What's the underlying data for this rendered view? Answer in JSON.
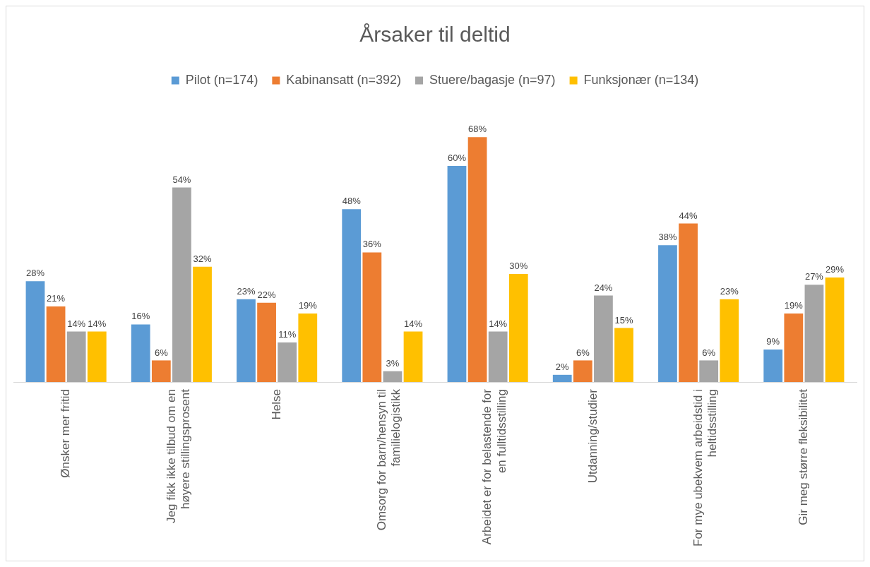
{
  "chart_data": {
    "type": "bar",
    "title": "Årsaker til deltid",
    "categories": [
      "Ønsker mer fritid",
      "Jeg fikk ikke tilbud om en høyere stillingsprosent",
      "Helse",
      "Omsorg for barn/hensyn til familielogistikk",
      "Arbeidet er for belastende for en fulltidsstilling",
      "Utdanning/studier",
      "For mye ubekvem arbeidstid i heltidsstilling",
      "Gir meg større fleksibilitet"
    ],
    "series": [
      {
        "name": "Pilot (n=174)",
        "color": "#5b9bd5",
        "values": [
          28,
          16,
          23,
          48,
          60,
          2,
          38,
          9
        ],
        "value_labels": [
          "28%",
          "16%",
          "23%",
          "48%",
          "60%",
          "2%",
          "38%",
          "9%"
        ]
      },
      {
        "name": "Kabinansatt (n=392)",
        "color": "#ed7d31",
        "values": [
          21,
          6,
          22,
          36,
          68,
          6,
          44,
          19
        ],
        "value_labels": [
          "21%",
          "6%",
          "22%",
          "36%",
          "68%",
          "6%",
          "44%",
          "19%"
        ]
      },
      {
        "name": "Stuere/bagasje (n=97)",
        "color": "#a5a5a5",
        "values": [
          14,
          54,
          11,
          3,
          14,
          24,
          6,
          27
        ],
        "value_labels": [
          "14%",
          "54%",
          "11%",
          "3%",
          "14%",
          "24%",
          "6%",
          "27%"
        ]
      },
      {
        "name": "Funksjonær (n=134)",
        "color": "#ffc000",
        "values": [
          14,
          32,
          19,
          14,
          30,
          15,
          23,
          29
        ],
        "value_labels": [
          "14%",
          "32%",
          "19%",
          "14%",
          "30%",
          "15%",
          "23%",
          "29%"
        ]
      }
    ],
    "legend": "top",
    "grid": false
  }
}
